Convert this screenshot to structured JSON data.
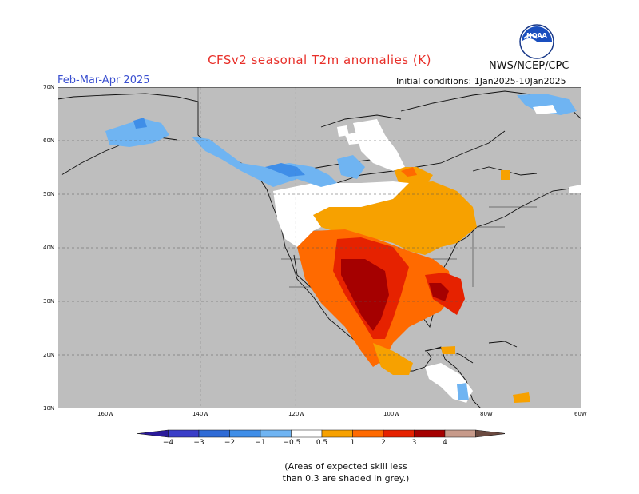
{
  "header": {
    "title": "CFSv2 seasonal T2m anomalies (K)",
    "season": "Feb-Mar-Apr 2025",
    "agency": "NWS/NCEP/CPC",
    "initial_conditions": "Initial conditions: 1Jan2025-10Jan2025",
    "logo_text": "NOAA"
  },
  "map": {
    "lat_labels": [
      "70N",
      "60N",
      "50N",
      "40N",
      "30N",
      "20N",
      "10N"
    ],
    "lon_labels": [
      "160W",
      "140W",
      "120W",
      "100W",
      "80W",
      "60W"
    ],
    "lat_range": [
      10,
      70
    ],
    "lon_range": [
      -170,
      -60
    ],
    "grid": "dashed",
    "unskilled_color": "#bebebe",
    "neutral_color": "#ffffff"
  },
  "colorbar": {
    "ticks": [
      "−4",
      "−3",
      "−2",
      "−1",
      "−0.5",
      "0.5",
      "1",
      "2",
      "3",
      "4"
    ],
    "colors": [
      "#2a1a9a",
      "#3a3ec8",
      "#2f6bd6",
      "#3f8ee8",
      "#6fb4f2",
      "#ffffff",
      "#f7a100",
      "#ff6a00",
      "#e62200",
      "#a50000",
      "#c79a8a",
      "#6b4a40"
    ]
  },
  "footnote": {
    "line1": "(Areas of expected skill less",
    "line2": "than 0.3 are shaded in grey.)"
  }
}
